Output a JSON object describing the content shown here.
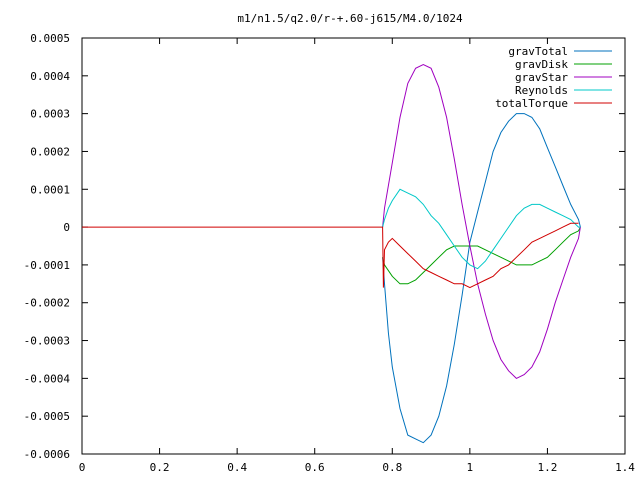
{
  "chart_data": {
    "type": "line",
    "title": "m1/n1.5/q2.0/r-+.60-j615/M4.0/1024",
    "xlabel": "",
    "ylabel": "",
    "xlim": [
      0,
      1.4
    ],
    "ylim": [
      -0.0006,
      0.0005
    ],
    "x_ticks": [
      "0",
      "0.2",
      "0.4",
      "0.6",
      "0.8",
      "1",
      "1.2",
      "1.4"
    ],
    "x_tick_values": [
      0,
      0.2,
      0.4,
      0.6,
      0.8,
      1.0,
      1.2,
      1.4
    ],
    "y_ticks": [
      "0.0005",
      "0.0004",
      "0.0003",
      "0.0002",
      "0.0001",
      "0",
      "-0.0001",
      "-0.0002",
      "-0.0003",
      "-0.0004",
      "-0.0005",
      "-0.0006"
    ],
    "y_tick_values": [
      0.0005,
      0.0004,
      0.0003,
      0.0002,
      0.0001,
      0,
      -0.0001,
      -0.0002,
      -0.0003,
      -0.0004,
      -0.0005,
      -0.0006
    ],
    "grid": false,
    "legend_position": "top-right",
    "series": [
      {
        "name": "gravTotal",
        "color": "#0072bd",
        "x": [
          0.775,
          0.78,
          0.79,
          0.8,
          0.82,
          0.84,
          0.86,
          0.88,
          0.9,
          0.92,
          0.94,
          0.96,
          0.98,
          1.0,
          1.02,
          1.04,
          1.06,
          1.08,
          1.1,
          1.12,
          1.14,
          1.16,
          1.18,
          1.2,
          1.22,
          1.24,
          1.26,
          1.28,
          1.285
        ],
        "y": [
          -8e-05,
          -0.00015,
          -0.00028,
          -0.00037,
          -0.00048,
          -0.00055,
          -0.00056,
          -0.00057,
          -0.00055,
          -0.0005,
          -0.00042,
          -0.00031,
          -0.00018,
          -4e-05,
          4e-05,
          0.00012,
          0.0002,
          0.00025,
          0.00028,
          0.0003,
          0.0003,
          0.00029,
          0.00026,
          0.00021,
          0.00016,
          0.00011,
          6e-05,
          2e-05,
          0.0
        ]
      },
      {
        "name": "gravDisk",
        "color": "#00a000",
        "x": [
          0.775,
          0.78,
          0.8,
          0.82,
          0.84,
          0.86,
          0.88,
          0.9,
          0.92,
          0.94,
          0.96,
          0.98,
          1.0,
          1.02,
          1.04,
          1.06,
          1.08,
          1.1,
          1.12,
          1.14,
          1.16,
          1.18,
          1.2,
          1.22,
          1.24,
          1.26,
          1.28,
          1.285
        ],
        "y": [
          -8e-05,
          -0.0001,
          -0.00013,
          -0.00015,
          -0.00015,
          -0.00014,
          -0.00012,
          -0.0001,
          -8e-05,
          -6e-05,
          -5e-05,
          -5e-05,
          -5e-05,
          -5e-05,
          -6e-05,
          -7e-05,
          -8e-05,
          -9e-05,
          -0.0001,
          -0.0001,
          -0.0001,
          -9e-05,
          -8e-05,
          -6e-05,
          -4e-05,
          -2e-05,
          -1e-05,
          0.0
        ]
      },
      {
        "name": "gravStar",
        "color": "#a000c0",
        "x": [
          0.775,
          0.78,
          0.8,
          0.82,
          0.84,
          0.86,
          0.88,
          0.9,
          0.92,
          0.94,
          0.96,
          0.98,
          1.0,
          1.02,
          1.04,
          1.06,
          1.08,
          1.1,
          1.12,
          1.14,
          1.16,
          1.18,
          1.2,
          1.22,
          1.24,
          1.26,
          1.28,
          1.285
        ],
        "y": [
          0.0,
          5e-05,
          0.00017,
          0.00029,
          0.00038,
          0.00042,
          0.00043,
          0.00042,
          0.00037,
          0.00029,
          0.00018,
          6e-05,
          -5e-05,
          -0.00015,
          -0.00023,
          -0.0003,
          -0.00035,
          -0.00038,
          -0.0004,
          -0.00039,
          -0.00037,
          -0.00033,
          -0.00027,
          -0.0002,
          -0.00014,
          -8e-05,
          -3e-05,
          0.0
        ]
      },
      {
        "name": "Reynolds",
        "color": "#00c8c8",
        "x": [
          0.775,
          0.78,
          0.79,
          0.8,
          0.82,
          0.84,
          0.86,
          0.88,
          0.9,
          0.92,
          0.94,
          0.96,
          0.98,
          1.0,
          1.02,
          1.04,
          1.06,
          1.08,
          1.1,
          1.12,
          1.14,
          1.16,
          1.18,
          1.2,
          1.22,
          1.24,
          1.26,
          1.28,
          1.285
        ],
        "y": [
          0.0,
          2e-05,
          5e-05,
          7e-05,
          0.0001,
          9e-05,
          8e-05,
          6e-05,
          3e-05,
          1e-05,
          -2e-05,
          -5e-05,
          -8e-05,
          -0.0001,
          -0.00011,
          -9e-05,
          -6e-05,
          -3e-05,
          0.0,
          3e-05,
          5e-05,
          6e-05,
          6e-05,
          5e-05,
          4e-05,
          3e-05,
          2e-05,
          0.0,
          0.0
        ]
      },
      {
        "name": "totalTorque",
        "color": "#d00000",
        "x": [
          0.0,
          0.775,
          0.777,
          0.78,
          0.79,
          0.8,
          0.82,
          0.84,
          0.86,
          0.88,
          0.9,
          0.92,
          0.94,
          0.96,
          0.98,
          1.0,
          1.02,
          1.04,
          1.06,
          1.08,
          1.1,
          1.12,
          1.14,
          1.16,
          1.18,
          1.2,
          1.22,
          1.24,
          1.26,
          1.28
        ],
        "y": [
          0.0,
          0.0,
          -0.00016,
          -6e-05,
          -4e-05,
          -3e-05,
          -5e-05,
          -7e-05,
          -9e-05,
          -0.00011,
          -0.00012,
          -0.00013,
          -0.00014,
          -0.00015,
          -0.00015,
          -0.00016,
          -0.00015,
          -0.00014,
          -0.00013,
          -0.00011,
          -0.0001,
          -8e-05,
          -6e-05,
          -4e-05,
          -3e-05,
          -2e-05,
          -1e-05,
          0.0,
          1e-05,
          1e-05
        ]
      }
    ]
  }
}
